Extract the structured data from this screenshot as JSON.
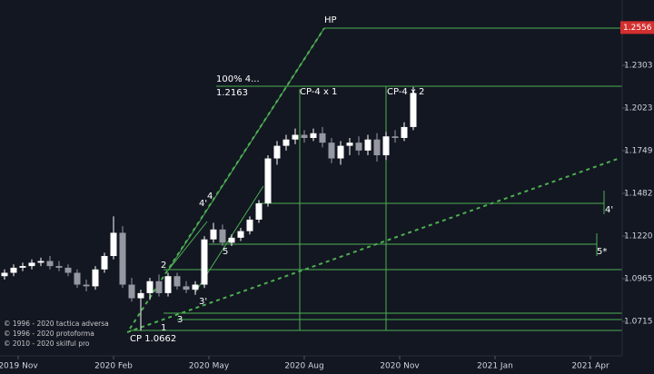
{
  "chart_data": {
    "type": "candlestick",
    "x": [
      1,
      3,
      5,
      7,
      9,
      11,
      13,
      15,
      17,
      19,
      21,
      23,
      25,
      27,
      29,
      31,
      33,
      35,
      37,
      39,
      41,
      43,
      45,
      47,
      49,
      51,
      53,
      55,
      57,
      59,
      61,
      63,
      65,
      67,
      69,
      71,
      73,
      75,
      77,
      79,
      81,
      83,
      85,
      87,
      89,
      91
    ],
    "open": [
      1.098,
      1.1,
      1.103,
      1.104,
      1.106,
      1.107,
      1.104,
      1.103,
      1.1,
      1.093,
      1.092,
      1.102,
      1.11,
      1.124,
      1.093,
      1.085,
      1.088,
      1.095,
      1.088,
      1.098,
      1.092,
      1.09,
      1.093,
      1.12,
      1.126,
      1.118,
      1.121,
      1.125,
      1.132,
      1.142,
      1.17,
      1.178,
      1.182,
      1.185,
      1.183,
      1.186,
      1.18,
      1.17,
      1.178,
      1.18,
      1.175,
      1.182,
      1.172,
      1.184,
      1.183,
      1.19
    ],
    "high": [
      1.102,
      1.105,
      1.106,
      1.108,
      1.109,
      1.11,
      1.107,
      1.105,
      1.102,
      1.096,
      1.104,
      1.112,
      1.134,
      1.128,
      1.097,
      1.09,
      1.097,
      1.099,
      1.1,
      1.1,
      1.095,
      1.095,
      1.122,
      1.13,
      1.129,
      1.123,
      1.127,
      1.134,
      1.144,
      1.172,
      1.181,
      1.185,
      1.189,
      1.188,
      1.189,
      1.19,
      1.183,
      1.181,
      1.183,
      1.184,
      1.185,
      1.186,
      1.187,
      1.188,
      1.193,
      1.216
    ],
    "low": [
      1.096,
      1.098,
      1.101,
      1.102,
      1.104,
      1.102,
      1.101,
      1.098,
      1.091,
      1.089,
      1.09,
      1.1,
      1.108,
      1.091,
      1.083,
      1.0662,
      1.084,
      1.086,
      1.086,
      1.09,
      1.088,
      1.087,
      1.091,
      1.118,
      1.116,
      1.116,
      1.119,
      1.123,
      1.13,
      1.14,
      1.166,
      1.175,
      1.179,
      1.18,
      1.181,
      1.177,
      1.167,
      1.166,
      1.172,
      1.172,
      1.172,
      1.168,
      1.169,
      1.18,
      1.181,
      1.188
    ],
    "close": [
      1.1,
      1.103,
      1.104,
      1.106,
      1.107,
      1.104,
      1.103,
      1.1,
      1.093,
      1.092,
      1.102,
      1.11,
      1.124,
      1.093,
      1.085,
      1.088,
      1.095,
      1.088,
      1.098,
      1.092,
      1.09,
      1.093,
      1.12,
      1.126,
      1.118,
      1.121,
      1.125,
      1.132,
      1.142,
      1.17,
      1.178,
      1.182,
      1.185,
      1.183,
      1.186,
      1.18,
      1.17,
      1.178,
      1.18,
      1.175,
      1.182,
      1.172,
      1.184,
      1.183,
      1.19,
      1.212
    ],
    "up_color": "#ffffff",
    "down_color": "#9598a1",
    "xlim": [
      0,
      136
    ],
    "xticks": [
      {
        "value": 4,
        "label": "2019 Nov"
      },
      {
        "value": 25,
        "label": "2020 Feb"
      },
      {
        "value": 46,
        "label": "2020 May"
      },
      {
        "value": 67,
        "label": "2020 Aug"
      },
      {
        "value": 88,
        "label": "2020 Nov"
      },
      {
        "value": 109,
        "label": "2021 Jan"
      },
      {
        "value": 130,
        "label": "2021 Apr"
      }
    ],
    "ylim": [
      1.0518,
      1.2744
    ],
    "log_scale": true,
    "yticks": [
      1.2303,
      1.2023,
      1.1749,
      1.1482,
      {
        "value": 1.122,
        "label": "1.1220"
      },
      1.0965,
      1.0715
    ],
    "last_price": 1.2556,
    "annotations": {
      "hp": "HP",
      "pct": "100%  4...",
      "level": "1.2163",
      "cp1": "CP-4 x 1",
      "cp2": "CP-4 x 2",
      "w4p": "4'",
      "w4": "4",
      "w2": "2",
      "w5": "5",
      "w3p": "3'",
      "w3": "3",
      "w1": "1",
      "cp": "CP 1.0662",
      "r4p": "4'",
      "r5s": "5*"
    },
    "copyright": [
      "© 1996 - 2020 tactica adversa",
      "© 1996 - 2020 protoforma",
      "© 2010 - 2020 skilful pro"
    ]
  }
}
